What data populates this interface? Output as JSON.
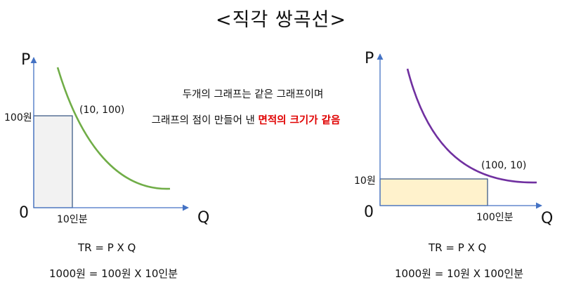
{
  "title": "<직각 쌍곡선>",
  "explanation": {
    "line1": "두개의 그래프는 같은 그래프이며",
    "line2_normal": "그래프의 점이 만들어 낸 ",
    "line2_highlight": "면적의 크기가 같음"
  },
  "left_graph": {
    "y_axis_label": "P",
    "x_axis_label": "Q",
    "origin_label": "0",
    "price_label": "100원",
    "quantity_label": "10인분",
    "point_label": "(10, 100)",
    "formula": "TR = P X Q",
    "calculation": "1000원 = 100원 X 10인분",
    "point": {
      "q": 10,
      "p": 100
    },
    "curve_color": "#70ad47",
    "rect_fill": "#f2f2f2"
  },
  "right_graph": {
    "y_axis_label": "P",
    "x_axis_label": "Q",
    "origin_label": "0",
    "price_label": "10원",
    "quantity_label": "100인분",
    "point_label": "(100, 10)",
    "formula": "TR = P X Q",
    "calculation": "1000원 = 10원 X 100인분",
    "point": {
      "q": 100,
      "p": 10
    },
    "curve_color": "#7030a0",
    "rect_fill": "#fff2cc"
  },
  "axis_color": "#4472c4",
  "rect_border_color": "#2f4f7f"
}
